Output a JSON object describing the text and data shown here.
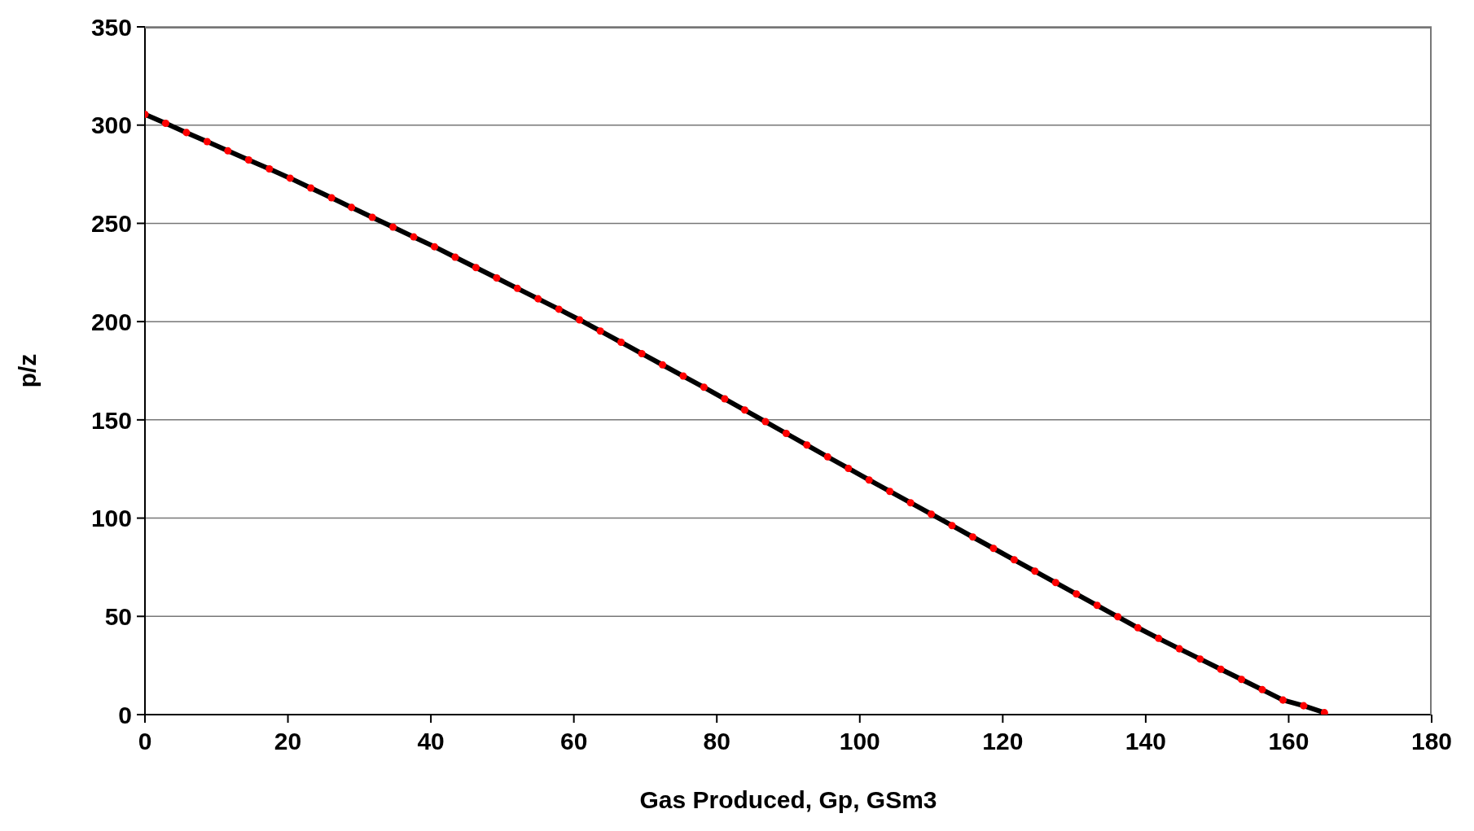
{
  "chart_data": {
    "type": "line",
    "xlabel": "Gas Produced, Gp, GSm3",
    "ylabel": "p/z",
    "x": [
      0,
      2.9,
      5.8,
      8.7,
      11.6,
      14.5,
      17.4,
      20.3,
      23.2,
      26.1,
      28.9,
      31.8,
      34.7,
      37.6,
      40.5,
      43.4,
      46.3,
      49.2,
      52.1,
      55.0,
      57.9,
      60.8,
      63.7,
      66.6,
      69.5,
      72.4,
      75.3,
      78.2,
      81.1,
      83.9,
      86.8,
      89.7,
      92.6,
      95.5,
      98.4,
      101.3,
      104.2,
      107.1,
      110.0,
      112.9,
      115.8,
      118.7,
      121.6,
      124.5,
      127.4,
      130.3,
      133.2,
      136.1,
      138.9,
      141.8,
      144.7,
      147.6,
      150.5,
      153.4,
      156.3,
      159.2,
      162.1,
      165
    ],
    "series": [
      {
        "color": "#000000",
        "marker": "none",
        "values": [
          305.5,
          300.9,
          296.2,
          291.6,
          286.9,
          282.3,
          277.7,
          273.0,
          268.0,
          263.0,
          258.1,
          253.1,
          248.1,
          243.1,
          238.1,
          232.8,
          227.5,
          222.2,
          216.9,
          211.6,
          206.3,
          200.9,
          195.2,
          189.5,
          183.7,
          178.0,
          172.3,
          166.6,
          160.7,
          155.0,
          149.1,
          143.1,
          137.2,
          131.2,
          125.3,
          119.4,
          113.6,
          107.8,
          102.0,
          96.2,
          90.4,
          84.6,
          78.8,
          73.0,
          67.2,
          61.4,
          55.6,
          49.8,
          44.2,
          38.8,
          33.5,
          28.3,
          23.1,
          17.9,
          12.7,
          7.4,
          4.5,
          1
        ]
      },
      {
        "type": "scatter",
        "color": "#ff0000",
        "marker": "circle",
        "values": [
          305.5,
          300.9,
          296.2,
          291.6,
          286.9,
          282.3,
          277.7,
          273.0,
          268.0,
          263.0,
          258.1,
          253.1,
          248.1,
          243.1,
          238.1,
          232.8,
          227.5,
          222.2,
          216.9,
          211.6,
          206.3,
          200.9,
          195.2,
          189.5,
          183.7,
          178.0,
          172.3,
          166.6,
          160.7,
          155.0,
          149.1,
          143.1,
          137.2,
          131.2,
          125.3,
          119.4,
          113.6,
          107.8,
          102.0,
          96.2,
          90.4,
          84.6,
          78.8,
          73.0,
          67.2,
          61.4,
          55.6,
          49.8,
          44.2,
          38.8,
          33.5,
          28.3,
          23.1,
          17.9,
          12.7,
          7.4,
          4.5,
          1
        ]
      }
    ],
    "xlim": [
      0,
      180
    ],
    "xticks": [
      0,
      20,
      40,
      60,
      80,
      100,
      120,
      140,
      160,
      180
    ],
    "ylim": [
      0,
      350
    ],
    "yticks": [
      0,
      50,
      100,
      150,
      200,
      250,
      300,
      350
    ],
    "grid": "y"
  }
}
